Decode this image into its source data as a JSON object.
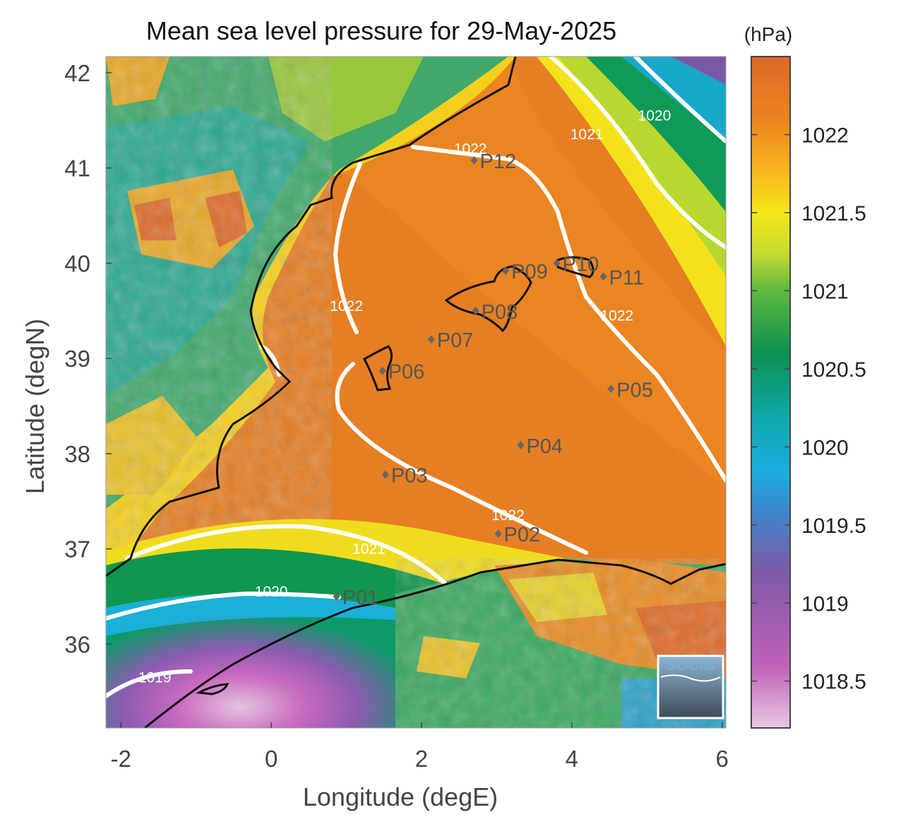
{
  "title": "Mean sea level pressure for 29-May-2025",
  "units": "(hPa)",
  "x_axis": {
    "label": "Longitude (degE)",
    "range": [
      -2.2,
      6.05
    ],
    "ticks": [
      -2,
      0,
      2,
      4,
      6
    ],
    "tick_labels": [
      "-2",
      "0",
      "2",
      "4",
      "6"
    ]
  },
  "y_axis": {
    "label": "Latitude (degN)",
    "range": [
      35.12,
      42.17
    ],
    "ticks": [
      36,
      37,
      38,
      39,
      40,
      41,
      42
    ],
    "tick_labels": [
      "36",
      "37",
      "38",
      "39",
      "40",
      "41",
      "42"
    ]
  },
  "colorbar": {
    "range": [
      1018.2,
      1022.5
    ],
    "ticks": [
      1018.5,
      1019,
      1019.5,
      1020,
      1020.5,
      1021,
      1021.5,
      1022
    ],
    "tick_labels": [
      "1018.5",
      "1019",
      "1019.5",
      "1020",
      "1020.5",
      "1021",
      "1021.5",
      "1022"
    ],
    "stops": [
      {
        "value": 1018.2,
        "color": "#e8c8e0"
      },
      {
        "value": 1018.6,
        "color": "#c060b8"
      },
      {
        "value": 1019.2,
        "color": "#7e5aa8"
      },
      {
        "value": 1019.6,
        "color": "#3a88cc"
      },
      {
        "value": 1019.85,
        "color": "#1aaee0"
      },
      {
        "value": 1020.2,
        "color": "#0ea8a8"
      },
      {
        "value": 1020.6,
        "color": "#0c9050"
      },
      {
        "value": 1021.0,
        "color": "#60b840"
      },
      {
        "value": 1021.25,
        "color": "#c8dc30"
      },
      {
        "value": 1021.5,
        "color": "#f4e818"
      },
      {
        "value": 1021.8,
        "color": "#f8b020"
      },
      {
        "value": 1022.1,
        "color": "#ec8420"
      },
      {
        "value": 1022.5,
        "color": "#dc6828"
      }
    ]
  },
  "contour_labels": [
    {
      "text": "1022",
      "lon": 2.65,
      "lat": 41.15
    },
    {
      "text": "1022",
      "lon": 1.0,
      "lat": 39.5
    },
    {
      "text": "1022",
      "lon": 4.6,
      "lat": 39.4
    },
    {
      "text": "1022",
      "lon": 3.15,
      "lat": 37.3
    },
    {
      "text": "1021",
      "lon": 4.2,
      "lat": 41.3
    },
    {
      "text": "1021",
      "lon": 1.3,
      "lat": 36.95
    },
    {
      "text": "1020",
      "lon": 5.1,
      "lat": 41.5
    },
    {
      "text": "1020",
      "lon": 0.0,
      "lat": 36.5
    },
    {
      "text": "1019",
      "lon": -1.55,
      "lat": 35.6
    }
  ],
  "stations": [
    {
      "name": "P01",
      "lon": 0.87,
      "lat": 36.5
    },
    {
      "name": "P02",
      "lon": 3.02,
      "lat": 37.16
    },
    {
      "name": "P03",
      "lon": 1.52,
      "lat": 37.78
    },
    {
      "name": "P04",
      "lon": 3.32,
      "lat": 38.09
    },
    {
      "name": "P05",
      "lon": 4.52,
      "lat": 38.68
    },
    {
      "name": "P06",
      "lon": 1.48,
      "lat": 38.87
    },
    {
      "name": "P07",
      "lon": 2.13,
      "lat": 39.2
    },
    {
      "name": "P08",
      "lon": 2.72,
      "lat": 39.5
    },
    {
      "name": "P09",
      "lon": 3.12,
      "lat": 39.92
    },
    {
      "name": "P10",
      "lon": 3.8,
      "lat": 40.0
    },
    {
      "name": "P11",
      "lon": 4.42,
      "lat": 39.86
    },
    {
      "name": "P12",
      "lon": 2.7,
      "lat": 41.08
    }
  ],
  "logo": {
    "text": "SOCIB"
  }
}
